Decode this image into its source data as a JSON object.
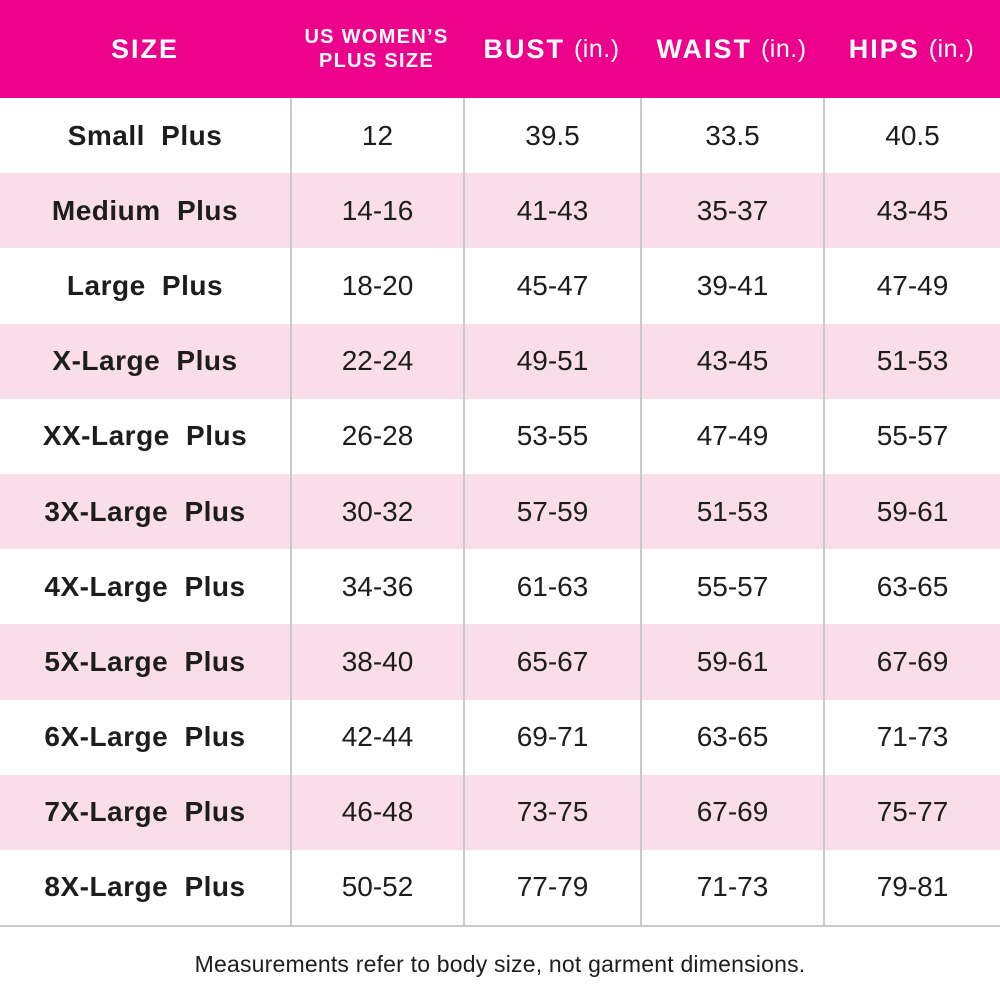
{
  "table": {
    "header": {
      "col1": "SIZE",
      "col2_line1": "US WOMEN’S",
      "col2_line2": "PLUS SIZE",
      "col3_label": "BUST",
      "col3_unit": "(in.)",
      "col4_label": "WAIST",
      "col4_unit": "(in.)",
      "col5_label": "HIPS",
      "col5_unit": "(in.)"
    },
    "rows": [
      {
        "size": "Small Plus",
        "us_plus": "12",
        "bust": "39.5",
        "waist": "33.5",
        "hips": "40.5"
      },
      {
        "size": "Medium Plus",
        "us_plus": "14-16",
        "bust": "41-43",
        "waist": "35-37",
        "hips": "43-45"
      },
      {
        "size": "Large Plus",
        "us_plus": "18-20",
        "bust": "45-47",
        "waist": "39-41",
        "hips": "47-49"
      },
      {
        "size": "X-Large Plus",
        "us_plus": "22-24",
        "bust": "49-51",
        "waist": "43-45",
        "hips": "51-53"
      },
      {
        "size": "XX-Large Plus",
        "us_plus": "26-28",
        "bust": "53-55",
        "waist": "47-49",
        "hips": "55-57"
      },
      {
        "size": "3X-Large Plus",
        "us_plus": "30-32",
        "bust": "57-59",
        "waist": "51-53",
        "hips": "59-61"
      },
      {
        "size": "4X-Large Plus",
        "us_plus": "34-36",
        "bust": "61-63",
        "waist": "55-57",
        "hips": "63-65"
      },
      {
        "size": "5X-Large Plus",
        "us_plus": "38-40",
        "bust": "65-67",
        "waist": "59-61",
        "hips": "67-69"
      },
      {
        "size": "6X-Large Plus",
        "us_plus": "42-44",
        "bust": "69-71",
        "waist": "63-65",
        "hips": "71-73"
      },
      {
        "size": "7X-Large Plus",
        "us_plus": "46-48",
        "bust": "73-75",
        "waist": "67-69",
        "hips": "75-77"
      },
      {
        "size": "8X-Large Plus",
        "us_plus": "50-52",
        "bust": "77-79",
        "waist": "71-73",
        "hips": "79-81"
      }
    ]
  },
  "footnote": "Measurements refer to body size, not garment dimensions.",
  "colors": {
    "header_bg": "#EC008C",
    "header_text": "#FFFFFF",
    "row_bg": "#FFFFFF",
    "row_alt_bg": "#F9DEE9",
    "border": "#C9C9C9",
    "text": "#1D1D1B"
  },
  "chart_data": {
    "type": "table",
    "columns": [
      "SIZE",
      "US WOMEN’S PLUS SIZE",
      "BUST (in.)",
      "WAIST (in.)",
      "HIPS (in.)"
    ],
    "rows": [
      [
        "Small Plus",
        "12",
        "39.5",
        "33.5",
        "40.5"
      ],
      [
        "Medium Plus",
        "14-16",
        "41-43",
        "35-37",
        "43-45"
      ],
      [
        "Large Plus",
        "18-20",
        "45-47",
        "39-41",
        "47-49"
      ],
      [
        "X-Large Plus",
        "22-24",
        "49-51",
        "43-45",
        "51-53"
      ],
      [
        "XX-Large Plus",
        "26-28",
        "53-55",
        "47-49",
        "55-57"
      ],
      [
        "3X-Large Plus",
        "30-32",
        "57-59",
        "51-53",
        "59-61"
      ],
      [
        "4X-Large Plus",
        "34-36",
        "61-63",
        "55-57",
        "63-65"
      ],
      [
        "5X-Large Plus",
        "38-40",
        "65-67",
        "59-61",
        "67-69"
      ],
      [
        "6X-Large Plus",
        "42-44",
        "69-71",
        "63-65",
        "71-73"
      ],
      [
        "7X-Large Plus",
        "46-48",
        "73-75",
        "67-69",
        "75-77"
      ],
      [
        "8X-Large Plus",
        "50-52",
        "77-79",
        "71-73",
        "79-81"
      ]
    ],
    "footnote": "Measurements refer to body size, not garment dimensions.",
    "layout": {
      "alternating_row_shading": true,
      "header_position": "top"
    }
  }
}
